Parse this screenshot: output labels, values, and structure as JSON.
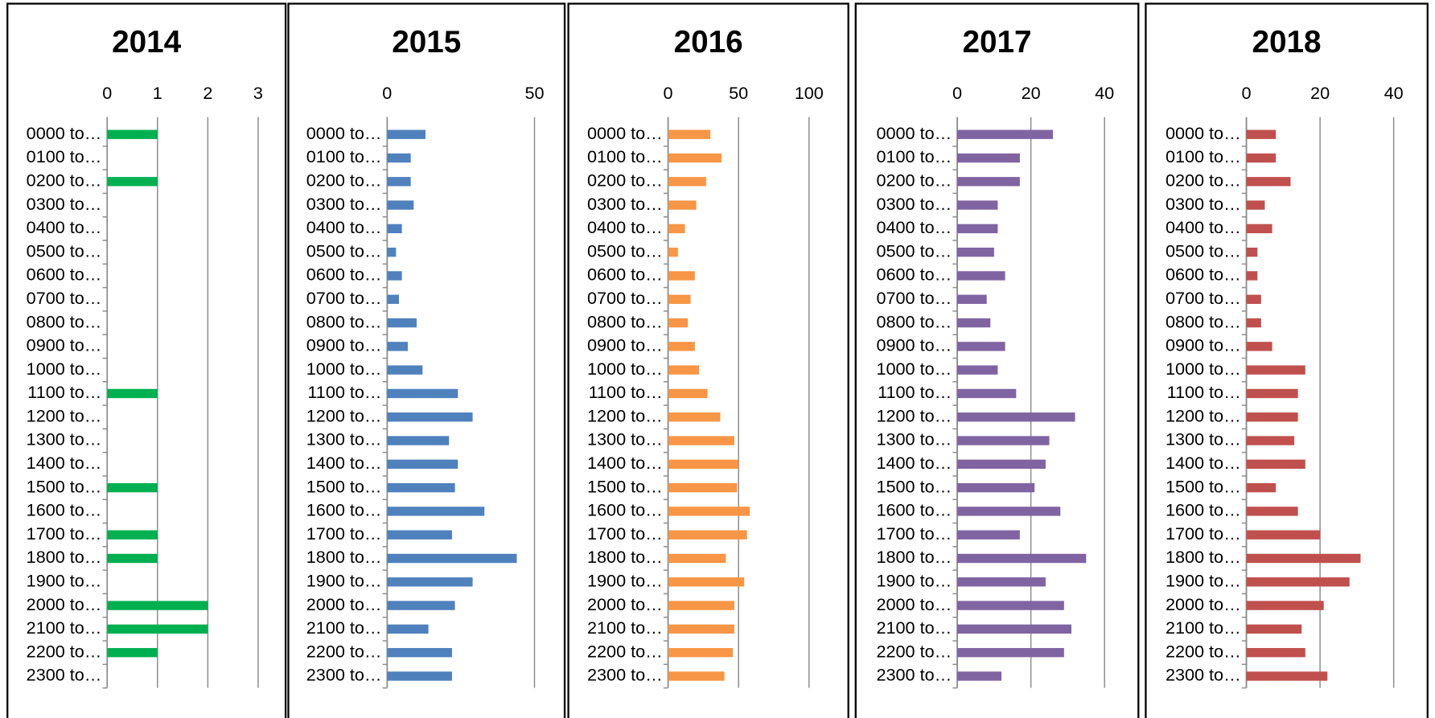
{
  "chart_data": [
    {
      "type": "bar",
      "orientation": "horizontal",
      "title": "2014",
      "color": "#00b050",
      "grid": true,
      "xlim": [
        0,
        3
      ],
      "xticks": [
        0,
        1,
        2,
        3
      ],
      "categories": [
        "0000 to…",
        "0100 to…",
        "0200 to…",
        "0300 to…",
        "0400 to…",
        "0500 to…",
        "0600 to…",
        "0700 to…",
        "0800 to…",
        "0900 to…",
        "1000 to…",
        "1100 to…",
        "1200 to…",
        "1300 to…",
        "1400 to…",
        "1500 to…",
        "1600 to…",
        "1700 to…",
        "1800 to…",
        "1900 to…",
        "2000 to…",
        "2100 to…",
        "2200 to…",
        "2300 to…"
      ],
      "values": [
        1,
        0,
        1,
        0,
        0,
        0,
        0,
        0,
        0,
        0,
        0,
        1,
        0,
        0,
        0,
        1,
        0,
        1,
        1,
        0,
        2,
        2,
        1,
        0
      ]
    },
    {
      "type": "bar",
      "orientation": "horizontal",
      "title": "2015",
      "color": "#4f81bd",
      "grid": true,
      "xlim": [
        0,
        50
      ],
      "xticks": [
        0,
        50
      ],
      "categories": [
        "0000 to…",
        "0100 to…",
        "0200 to…",
        "0300 to…",
        "0400 to…",
        "0500 to…",
        "0600 to…",
        "0700 to…",
        "0800 to…",
        "0900 to…",
        "1000 to…",
        "1100 to…",
        "1200 to…",
        "1300 to…",
        "1400 to…",
        "1500 to…",
        "1600 to…",
        "1700 to…",
        "1800 to…",
        "1900 to…",
        "2000 to…",
        "2100 to…",
        "2200 to…",
        "2300 to…"
      ],
      "values": [
        13,
        8,
        8,
        9,
        5,
        3,
        5,
        4,
        10,
        7,
        12,
        24,
        29,
        21,
        24,
        23,
        33,
        22,
        44,
        29,
        23,
        14,
        22,
        22
      ]
    },
    {
      "type": "bar",
      "orientation": "horizontal",
      "title": "2016",
      "color": "#f79646",
      "grid": true,
      "xlim": [
        0,
        100
      ],
      "xticks": [
        0,
        50,
        100
      ],
      "categories": [
        "0000 to…",
        "0100 to…",
        "0200 to…",
        "0300 to…",
        "0400 to…",
        "0500 to…",
        "0600 to…",
        "0700 to…",
        "0800 to…",
        "0900 to…",
        "1000 to…",
        "1100 to…",
        "1200 to…",
        "1300 to…",
        "1400 to…",
        "1500 to…",
        "1600 to…",
        "1700 to…",
        "1800 to…",
        "1900 to…",
        "2000 to…",
        "2100 to…",
        "2200 to…",
        "2300 to…"
      ],
      "values": [
        30,
        38,
        27,
        20,
        12,
        7,
        19,
        16,
        14,
        19,
        22,
        28,
        37,
        47,
        50,
        49,
        58,
        56,
        41,
        54,
        47,
        47,
        46,
        40
      ]
    },
    {
      "type": "bar",
      "orientation": "horizontal",
      "title": "2017",
      "color": "#8064a2",
      "grid": true,
      "xlim": [
        0,
        40
      ],
      "xticks": [
        0,
        20,
        40
      ],
      "categories": [
        "0000 to…",
        "0100 to…",
        "0200 to…",
        "0300 to…",
        "0400 to…",
        "0500 to…",
        "0600 to…",
        "0700 to…",
        "0800 to…",
        "0900 to…",
        "1000 to…",
        "1100 to…",
        "1200 to…",
        "1300 to…",
        "1400 to…",
        "1500 to…",
        "1600 to…",
        "1700 to…",
        "1800 to…",
        "1900 to…",
        "2000 to…",
        "2100 to…",
        "2200 to…",
        "2300 to…"
      ],
      "values": [
        26,
        17,
        17,
        11,
        11,
        10,
        13,
        8,
        9,
        13,
        11,
        16,
        32,
        25,
        24,
        21,
        28,
        17,
        35,
        24,
        29,
        31,
        29,
        12
      ]
    },
    {
      "type": "bar",
      "orientation": "horizontal",
      "title": "2018",
      "color": "#c0504d",
      "grid": true,
      "xlim": [
        0,
        40
      ],
      "xticks": [
        0,
        20,
        40
      ],
      "categories": [
        "0000 to…",
        "0100 to…",
        "0200 to…",
        "0300 to…",
        "0400 to…",
        "0500 to…",
        "0600 to…",
        "0700 to…",
        "0800 to…",
        "0900 to…",
        "1000 to…",
        "1100 to…",
        "1200 to…",
        "1300 to…",
        "1400 to…",
        "1500 to…",
        "1600 to…",
        "1700 to…",
        "1800 to…",
        "1900 to…",
        "2000 to…",
        "2100 to…",
        "2200 to…",
        "2300 to…"
      ],
      "values": [
        8,
        8,
        12,
        5,
        7,
        3,
        3,
        4,
        4,
        7,
        16,
        14,
        14,
        13,
        16,
        8,
        14,
        20,
        31,
        28,
        21,
        15,
        16,
        22
      ]
    }
  ]
}
